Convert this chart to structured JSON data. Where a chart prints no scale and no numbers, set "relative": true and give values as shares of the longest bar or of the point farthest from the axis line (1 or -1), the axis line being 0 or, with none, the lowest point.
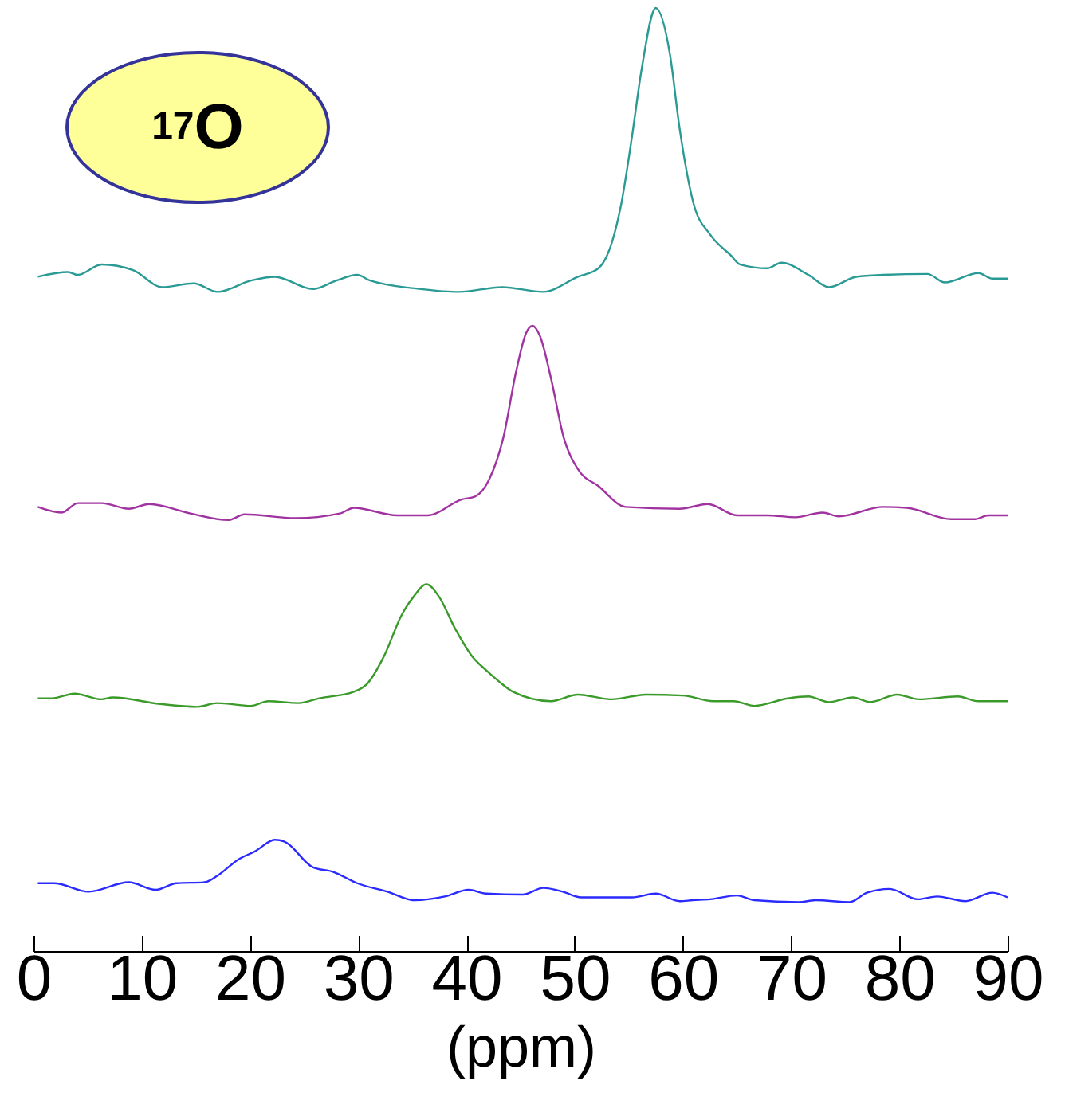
{
  "chart_data": {
    "type": "line",
    "relative": true,
    "xlabel": "(ppm)",
    "xlim": [
      0,
      90
    ],
    "xticks": [
      0,
      10,
      20,
      30,
      40,
      50,
      60,
      70,
      80,
      90
    ],
    "tick_labels": "x",
    "annotations": [
      "$^{17}$O"
    ],
    "series": [
      {
        "color": "#2a9a94",
        "x": [
          0.4,
          3.2,
          4.1,
          6.3,
          9.2,
          11.9,
          14.8,
          17.0,
          20.1,
          22.3,
          25.8,
          28.0,
          29.9,
          31.1,
          35.8,
          39.3,
          43.3,
          47.1,
          50.3,
          52.2,
          53.4,
          54.3,
          55.3,
          56.2,
          57.5,
          58.8,
          59.7,
          61.0,
          62.5,
          64.4,
          65.3,
          67.8,
          69.1,
          71.6,
          73.5,
          76.0,
          78.5,
          82.6,
          84.2,
          87.3,
          88.6,
          90.0
        ],
        "values": [
          0.715,
          0.72,
          0.717,
          0.728,
          0.722,
          0.704,
          0.708,
          0.699,
          0.711,
          0.715,
          0.702,
          0.711,
          0.717,
          0.711,
          0.702,
          0.699,
          0.704,
          0.699,
          0.715,
          0.724,
          0.75,
          0.792,
          0.864,
          0.936,
          1.0,
          0.951,
          0.872,
          0.792,
          0.76,
          0.738,
          0.728,
          0.724,
          0.73,
          0.717,
          0.704,
          0.715,
          0.717,
          0.718,
          0.709,
          0.719,
          0.713,
          0.713
        ]
      },
      {
        "color": "#a033a0",
        "x": [
          0.4,
          2.6,
          4.1,
          6.3,
          8.8,
          10.7,
          14.5,
          18.0,
          19.5,
          24.2,
          28.3,
          29.6,
          33.6,
          36.4,
          39.6,
          40.8,
          42.1,
          43.4,
          44.6,
          45.5,
          46.1,
          46.8,
          47.8,
          49.0,
          50.3,
          52.2,
          54.7,
          59.7,
          62.3,
          65.0,
          67.8,
          70.4,
          72.9,
          74.4,
          78.5,
          80.7,
          84.8,
          87.0,
          88.2,
          90.0
        ],
        "values": [
          0.471,
          0.465,
          0.475,
          0.475,
          0.469,
          0.474,
          0.464,
          0.457,
          0.463,
          0.459,
          0.464,
          0.47,
          0.462,
          0.462,
          0.479,
          0.482,
          0.5,
          0.544,
          0.615,
          0.655,
          0.663,
          0.652,
          0.608,
          0.544,
          0.511,
          0.493,
          0.471,
          0.469,
          0.474,
          0.462,
          0.462,
          0.46,
          0.465,
          0.461,
          0.471,
          0.47,
          0.458,
          0.458,
          0.462,
          0.462
        ]
      },
      {
        "color": "#3a9a2a",
        "x": [
          0.4,
          1.7,
          3.8,
          6.3,
          7.3,
          11.7,
          15.1,
          17.0,
          20.1,
          21.7,
          24.5,
          26.4,
          29.6,
          30.8,
          32.4,
          34.0,
          35.2,
          36.3,
          37.4,
          39.0,
          40.5,
          41.8,
          43.0,
          44.3,
          47.8,
          50.3,
          53.4,
          56.6,
          60.0,
          62.8,
          64.7,
          66.6,
          69.7,
          71.6,
          73.5,
          75.7,
          77.3,
          79.8,
          81.8,
          85.4,
          87.3,
          90.0
        ],
        "values": [
          0.268,
          0.268,
          0.273,
          0.267,
          0.269,
          0.262,
          0.259,
          0.263,
          0.26,
          0.265,
          0.263,
          0.268,
          0.275,
          0.283,
          0.313,
          0.356,
          0.377,
          0.389,
          0.377,
          0.341,
          0.313,
          0.298,
          0.286,
          0.275,
          0.265,
          0.272,
          0.267,
          0.272,
          0.271,
          0.265,
          0.265,
          0.26,
          0.268,
          0.27,
          0.264,
          0.269,
          0.264,
          0.272,
          0.267,
          0.27,
          0.265,
          0.265
        ]
      },
      {
        "color": "#2b2bff",
        "x": [
          0.4,
          1.9,
          5.1,
          8.8,
          11.3,
          13.2,
          15.8,
          17.0,
          18.9,
          20.5,
          22.3,
          23.2,
          25.8,
          27.7,
          29.9,
          32.7,
          35.2,
          38.0,
          40.2,
          41.8,
          45.2,
          47.1,
          48.9,
          50.6,
          55.3,
          57.5,
          59.7,
          60.9,
          62.5,
          65.0,
          66.6,
          70.7,
          72.3,
          75.4,
          77.0,
          79.1,
          81.7,
          83.5,
          86.1,
          88.6,
          90.0
        ],
        "values": [
          0.072,
          0.072,
          0.063,
          0.073,
          0.065,
          0.072,
          0.073,
          0.08,
          0.097,
          0.106,
          0.118,
          0.116,
          0.089,
          0.084,
          0.072,
          0.063,
          0.054,
          0.058,
          0.065,
          0.061,
          0.06,
          0.067,
          0.063,
          0.057,
          0.057,
          0.061,
          0.053,
          0.054,
          0.055,
          0.059,
          0.054,
          0.052,
          0.054,
          0.052,
          0.062,
          0.066,
          0.055,
          0.058,
          0.053,
          0.062,
          0.057
        ]
      }
    ]
  }
}
